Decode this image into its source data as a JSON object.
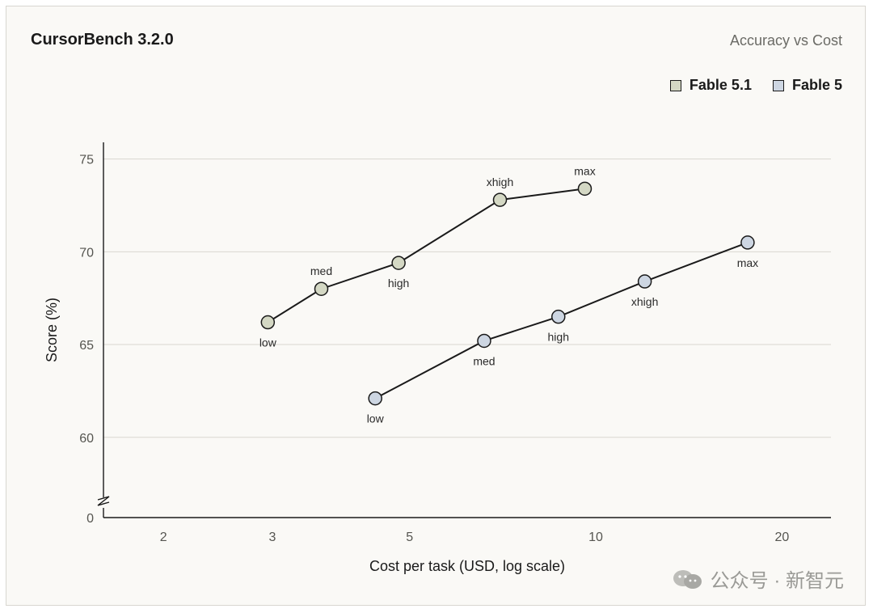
{
  "header": {
    "title": "CursorBench 3.2.0",
    "subtitle": "Accuracy vs Cost"
  },
  "watermark": {
    "text": "公众号 · 新智元"
  },
  "chart_data": {
    "type": "line",
    "title": "CursorBench 3.2.0",
    "subtitle": "Accuracy vs Cost",
    "xlabel": "Cost per task (USD, log scale)",
    "ylabel": "Score (%)",
    "x_scale": "log",
    "xlim": [
      1.6,
      24
    ],
    "x_ticks": [
      2,
      3,
      5,
      10,
      20
    ],
    "x_tick_labels": [
      "2",
      "3",
      "5",
      "10",
      "20"
    ],
    "ylim": [
      57.2,
      75.9
    ],
    "y_ticks": [
      60,
      65,
      70,
      75
    ],
    "y_tick_labels": [
      "60",
      "65",
      "70",
      "75"
    ],
    "y_axis_break": {
      "label": "0"
    },
    "grid": "horizontal",
    "legend_position": "top-right",
    "series": [
      {
        "name": "Fable 5.1",
        "color": "#d4d8c4",
        "points": [
          {
            "label": "low",
            "x": 2.95,
            "y": 66.2,
            "label_pos": "below"
          },
          {
            "label": "med",
            "x": 3.6,
            "y": 68.0,
            "label_pos": "above"
          },
          {
            "label": "high",
            "x": 4.8,
            "y": 69.4,
            "label_pos": "below"
          },
          {
            "label": "xhigh",
            "x": 7.0,
            "y": 72.8,
            "label_pos": "above"
          },
          {
            "label": "max",
            "x": 9.6,
            "y": 73.4,
            "label_pos": "above"
          }
        ]
      },
      {
        "name": "Fable 5",
        "color": "#cdd6e2",
        "points": [
          {
            "label": "low",
            "x": 4.4,
            "y": 62.1,
            "label_pos": "below"
          },
          {
            "label": "med",
            "x": 6.6,
            "y": 65.2,
            "label_pos": "below"
          },
          {
            "label": "high",
            "x": 8.7,
            "y": 66.5,
            "label_pos": "below"
          },
          {
            "label": "xhigh",
            "x": 12.0,
            "y": 68.4,
            "label_pos": "below"
          },
          {
            "label": "max",
            "x": 17.6,
            "y": 70.5,
            "label_pos": "below"
          }
        ]
      }
    ]
  }
}
